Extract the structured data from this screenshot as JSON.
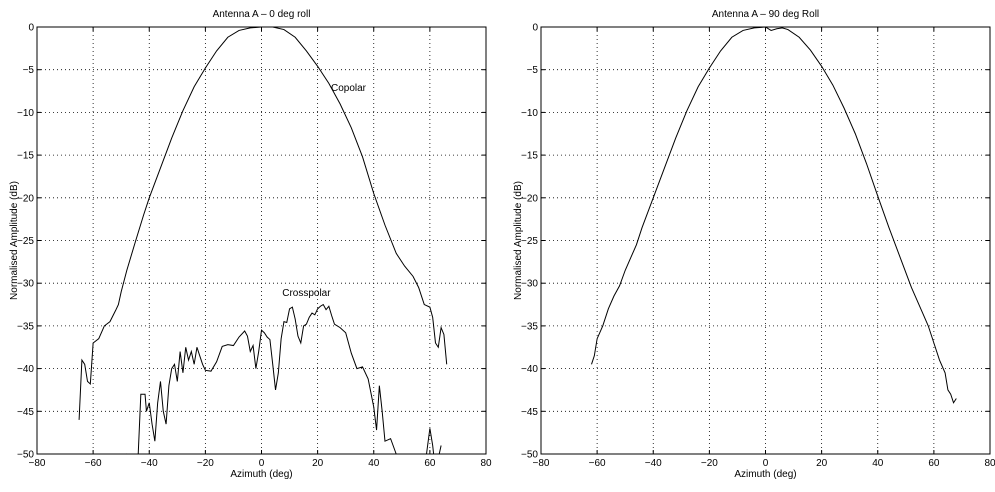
{
  "chart_data": [
    {
      "type": "line",
      "title": "Antenna A – 0 deg roll",
      "xlabel": "Azimuth (deg)",
      "ylabel": "Normalised Amplitude (dB)",
      "xlim": [
        -80,
        80
      ],
      "ylim": [
        -50,
        0
      ],
      "xticks": [
        -80,
        -60,
        -40,
        -20,
        0,
        20,
        40,
        60,
        80
      ],
      "yticks": [
        0,
        -5,
        -10,
        -15,
        -20,
        -25,
        -30,
        -35,
        -40,
        -45,
        -50
      ],
      "xtick_labels": [
        "−80",
        "−60",
        "−40",
        "−20",
        "0",
        "20",
        "40",
        "60",
        "80"
      ],
      "ytick_labels": [
        "0",
        "−5",
        "−10",
        "−15",
        "−20",
        "−25",
        "−30",
        "−35",
        "−40",
        "−45",
        "−50"
      ],
      "grid": "dotted",
      "annotations": [
        {
          "text": "Copolar",
          "x": 31,
          "y": -7.5
        },
        {
          "text": "Crosspolar",
          "x": 16,
          "y": -31.5
        }
      ],
      "series": [
        {
          "points": [
            [
              -65,
              -46
            ],
            [
              -64,
              -39
            ],
            [
              -63,
              -39.5
            ],
            [
              -62,
              -41.5
            ],
            [
              -61,
              -41.8
            ],
            [
              -60,
              -37
            ],
            [
              -58,
              -36.5
            ],
            [
              -56,
              -35
            ],
            [
              -54,
              -34.5
            ],
            [
              -52,
              -33.2
            ],
            [
              -51,
              -32.5
            ],
            [
              -50,
              -31
            ],
            [
              -48,
              -28.5
            ],
            [
              -45,
              -25.2
            ],
            [
              -42,
              -22
            ],
            [
              -40,
              -20
            ],
            [
              -36,
              -16.5
            ],
            [
              -32,
              -13
            ],
            [
              -28,
              -9.8
            ],
            [
              -24,
              -7
            ],
            [
              -20,
              -4.8
            ],
            [
              -16,
              -2.8
            ],
            [
              -12,
              -1.2
            ],
            [
              -8,
              -0.4
            ],
            [
              -4,
              -0.1
            ],
            [
              0,
              0
            ],
            [
              4,
              0
            ],
            [
              8,
              -0.3
            ],
            [
              12,
              -1.2
            ],
            [
              16,
              -2.8
            ],
            [
              20,
              -4.6
            ],
            [
              24,
              -6.6
            ],
            [
              28,
              -9
            ],
            [
              32,
              -11.8
            ],
            [
              36,
              -15.2
            ],
            [
              40,
              -19.5
            ],
            [
              44,
              -23.2
            ],
            [
              48,
              -26.5
            ],
            [
              51,
              -28
            ],
            [
              54,
              -29.2
            ],
            [
              56,
              -30.5
            ],
            [
              58,
              -32.5
            ],
            [
              60,
              -32.8
            ],
            [
              61,
              -34
            ],
            [
              62,
              -37
            ],
            [
              63,
              -37.5
            ],
            [
              64,
              -35.2
            ],
            [
              65,
              -36
            ],
            [
              66,
              -39.5
            ]
          ]
        },
        {
          "points": [
            [
              -58,
              -50
            ],
            [
              -56,
              -51
            ],
            [
              -52,
              -52
            ],
            [
              -48,
              -50
            ],
            [
              -44,
              -50.5
            ],
            [
              -43,
              -43
            ],
            [
              -41.5,
              -43
            ],
            [
              -41,
              -45
            ],
            [
              -40,
              -44
            ],
            [
              -39,
              -46.5
            ],
            [
              -38,
              -48.5
            ],
            [
              -37,
              -44
            ],
            [
              -36,
              -41.5
            ],
            [
              -35,
              -45
            ],
            [
              -34,
              -46.5
            ],
            [
              -33,
              -42
            ],
            [
              -32,
              -40
            ],
            [
              -31,
              -39.5
            ],
            [
              -30,
              -41.5
            ],
            [
              -29,
              -38
            ],
            [
              -28,
              -40.5
            ],
            [
              -27,
              -37.5
            ],
            [
              -26,
              -39
            ],
            [
              -25,
              -38
            ],
            [
              -24,
              -39.5
            ],
            [
              -23,
              -37.5
            ],
            [
              -22,
              -38.5
            ],
            [
              -21,
              -39.5
            ],
            [
              -20,
              -40.2
            ],
            [
              -18,
              -40.3
            ],
            [
              -16,
              -39.2
            ],
            [
              -14,
              -37.4
            ],
            [
              -12,
              -37.2
            ],
            [
              -10,
              -37.3
            ],
            [
              -8,
              -36.3
            ],
            [
              -6,
              -35.6
            ],
            [
              -5,
              -36.2
            ],
            [
              -4,
              -38
            ],
            [
              -3,
              -37.3
            ],
            [
              -2,
              -40
            ],
            [
              -1,
              -38
            ],
            [
              0,
              -35.5
            ],
            [
              1,
              -35.8
            ],
            [
              2,
              -36.3
            ],
            [
              3,
              -36.6
            ],
            [
              4,
              -39.5
            ],
            [
              5,
              -42.5
            ],
            [
              6,
              -40.5
            ],
            [
              7,
              -36.5
            ],
            [
              8,
              -34.5
            ],
            [
              9,
              -34.6
            ],
            [
              10,
              -33
            ],
            [
              11,
              -32.8
            ],
            [
              12,
              -34.2
            ],
            [
              13,
              -36.2
            ],
            [
              14,
              -37
            ],
            [
              15,
              -35
            ],
            [
              16,
              -34.8
            ],
            [
              17,
              -34
            ],
            [
              18,
              -33.5
            ],
            [
              19,
              -33.7
            ],
            [
              20,
              -33
            ],
            [
              21,
              -32.7
            ],
            [
              22,
              -32.5
            ],
            [
              23,
              -33.1
            ],
            [
              24,
              -32.7
            ],
            [
              25,
              -33.8
            ],
            [
              26,
              -34.8
            ],
            [
              28,
              -35.2
            ],
            [
              30,
              -35.8
            ],
            [
              32,
              -38.2
            ],
            [
              34,
              -40
            ],
            [
              36,
              -39.8
            ],
            [
              38,
              -41.2
            ],
            [
              40,
              -44.5
            ],
            [
              41,
              -47.2
            ],
            [
              42,
              -42
            ],
            [
              43,
              -45
            ],
            [
              44,
              -48.5
            ],
            [
              46,
              -48.2
            ],
            [
              48,
              -50
            ],
            [
              50,
              -51.5
            ],
            [
              54,
              -53
            ],
            [
              58,
              -52
            ],
            [
              59,
              -49.5
            ],
            [
              60,
              -47
            ],
            [
              61,
              -49
            ],
            [
              62,
              -52
            ],
            [
              64,
              -49
            ]
          ]
        }
      ]
    },
    {
      "type": "line",
      "title": "Antenna A – 90 deg Roll",
      "xlabel": "Azimuth (deg)",
      "ylabel": "Normalised Amplitude (dB)",
      "xlim": [
        -80,
        80
      ],
      "ylim": [
        -50,
        0
      ],
      "xticks": [
        -80,
        -60,
        -40,
        -20,
        0,
        20,
        40,
        60,
        80
      ],
      "yticks": [
        0,
        -5,
        -10,
        -15,
        -20,
        -25,
        -30,
        -35,
        -40,
        -45,
        -50
      ],
      "xtick_labels": [
        "−80",
        "−60",
        "−40",
        "−20",
        "0",
        "20",
        "40",
        "60",
        "80"
      ],
      "ytick_labels": [
        "0",
        "−5",
        "−10",
        "−15",
        "−20",
        "−25",
        "−30",
        "−35",
        "−40",
        "−45",
        "−50"
      ],
      "grid": "dotted",
      "series": [
        {
          "points": [
            [
              -62,
              -39.5
            ],
            [
              -61,
              -38.5
            ],
            [
              -60,
              -36.5
            ],
            [
              -58,
              -35
            ],
            [
              -56,
              -33
            ],
            [
              -54,
              -31.5
            ],
            [
              -52,
              -30.3
            ],
            [
              -50,
              -28.5
            ],
            [
              -48,
              -27
            ],
            [
              -46,
              -25.5
            ],
            [
              -44,
              -23.5
            ],
            [
              -40,
              -20
            ],
            [
              -36,
              -16.5
            ],
            [
              -32,
              -13
            ],
            [
              -28,
              -9.8
            ],
            [
              -24,
              -7
            ],
            [
              -20,
              -4.8
            ],
            [
              -16,
              -2.8
            ],
            [
              -12,
              -1.2
            ],
            [
              -8,
              -0.4
            ],
            [
              -4,
              -0.1
            ],
            [
              0,
              0
            ],
            [
              2,
              -0.4
            ],
            [
              4,
              -0.2
            ],
            [
              6,
              -0.1
            ],
            [
              8,
              -0.3
            ],
            [
              12,
              -1.2
            ],
            [
              16,
              -2.7
            ],
            [
              20,
              -4.6
            ],
            [
              24,
              -6.8
            ],
            [
              28,
              -9.5
            ],
            [
              32,
              -12.5
            ],
            [
              36,
              -16
            ],
            [
              40,
              -19.8
            ],
            [
              44,
              -23.5
            ],
            [
              48,
              -27
            ],
            [
              52,
              -30.5
            ],
            [
              56,
              -33.5
            ],
            [
              58,
              -35
            ],
            [
              60,
              -37
            ],
            [
              62,
              -39
            ],
            [
              64,
              -40.5
            ],
            [
              65,
              -42.5
            ],
            [
              66,
              -43
            ],
            [
              67,
              -44
            ],
            [
              68,
              -43.5
            ]
          ]
        }
      ]
    }
  ]
}
